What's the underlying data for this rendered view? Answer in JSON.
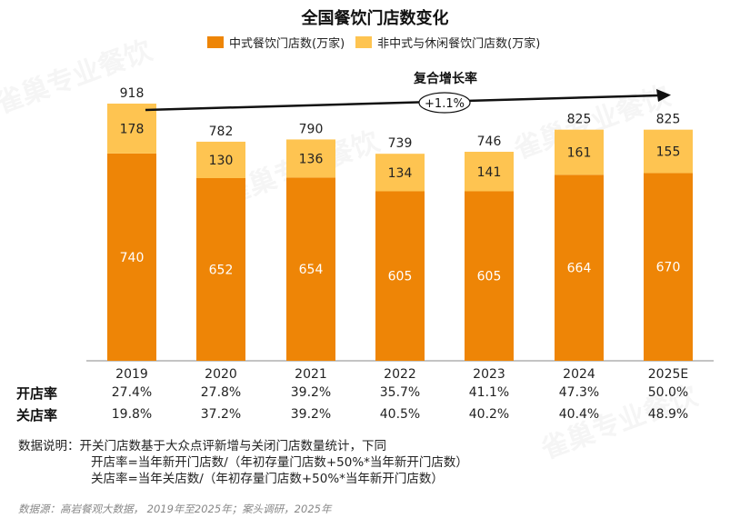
{
  "chart_data": {
    "type": "bar",
    "stacked": true,
    "title": "全国餐饮门店数变化",
    "categories": [
      "2019",
      "2020",
      "2021",
      "2022",
      "2023",
      "2024",
      "2025E"
    ],
    "series": [
      {
        "name": "中式餐饮门店数(万家)",
        "color": "#EE8506",
        "values": [
          740,
          652,
          654,
          605,
          605,
          664,
          670
        ]
      },
      {
        "name": "非中式与休闲餐饮门店数(万家)",
        "color": "#FEC451",
        "values": [
          178,
          130,
          136,
          134,
          141,
          161,
          155
        ]
      }
    ],
    "totals": [
      918,
      782,
      790,
      739,
      746,
      825,
      825
    ],
    "ylim": [
      0,
      918
    ],
    "legend_position": "top",
    "annotation": {
      "title": "复合增长率",
      "value": "+1.1%"
    }
  },
  "table": {
    "open_label": "开店率",
    "close_label": "关店率",
    "open_rates": [
      "27.4%",
      "27.8%",
      "39.2%",
      "35.7%",
      "41.1%",
      "47.3%",
      "50.0%"
    ],
    "close_rates": [
      "19.8%",
      "37.2%",
      "39.2%",
      "40.5%",
      "40.2%",
      "40.4%",
      "48.9%"
    ]
  },
  "notes": {
    "line1": "数据说明：开关门店数基于大众点评新增与关闭门店数量统计，下同",
    "line2": "开店率=当年新开门店数/（年初存量门店数+50%*当年新开门店数）",
    "line3": "关店率=当年关店数/（年初存量门店数+50%*当年新开门店数）"
  },
  "source": "数据源：高岩餐观大数据，  2019年至2025年；案头调研，2025年",
  "watermark": "雀巢专业餐饮"
}
